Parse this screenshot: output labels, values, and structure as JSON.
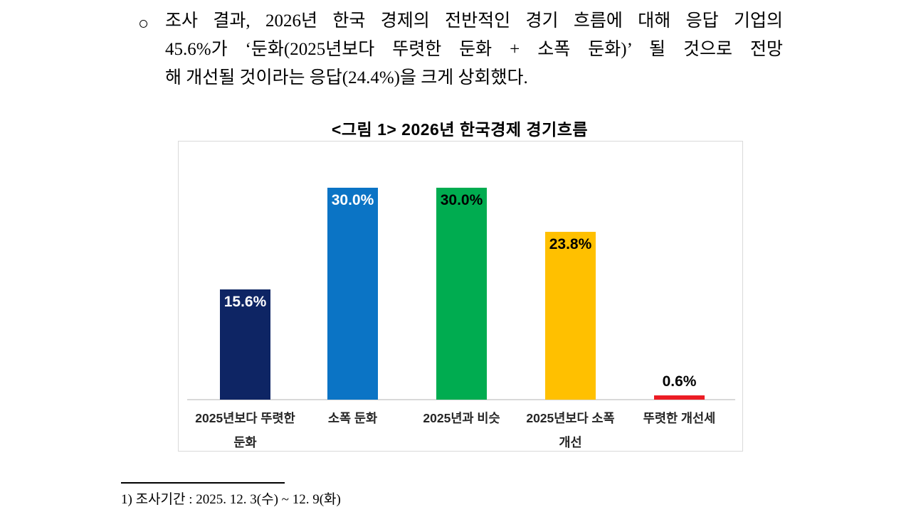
{
  "paragraph": {
    "bullet": "○",
    "lines": [
      "조사 결과, 2026년 한국 경제의 전반적인 경기 흐름에 대해 응답 기업의",
      "45.6%가 ‘둔화(2025년보다 뚜렷한 둔화 + 소폭 둔화)’ 될 것으로 전망",
      "해 개선될 것이라는 응답(24.4%)을 크게 상회했다."
    ]
  },
  "chart_data": {
    "type": "bar",
    "title": "<그림 1> 2026년 한국경제 경기흐름",
    "categories": [
      "2025년보다 뚜렷한\n둔화",
      "소폭 둔화",
      "2025년과 비슷",
      "2025년보다 소폭\n개선",
      "뚜렷한 개선세"
    ],
    "values": [
      15.6,
      30.0,
      30.0,
      23.8,
      0.6
    ],
    "value_labels": [
      "15.6%",
      "30.0%",
      "30.0%",
      "23.8%",
      "0.6%"
    ],
    "bar_colors": [
      "#0e2564",
      "#0b74c5",
      "#00ac50",
      "#ffc000",
      "#ec1c24"
    ],
    "value_label_colors": [
      "#ffffff",
      "#ffffff",
      "#000000",
      "#000000",
      "#000000"
    ],
    "value_label_positions": [
      "inside",
      "inside",
      "inside",
      "inside",
      "above"
    ],
    "xlabel": "",
    "ylabel": "",
    "ylim": [
      0,
      35
    ],
    "grid": false,
    "legend": false,
    "unit": "%"
  },
  "footnote": {
    "text": "1) 조사기간 : 2025. 12. 3(수) ~ 12. 9(화)"
  }
}
